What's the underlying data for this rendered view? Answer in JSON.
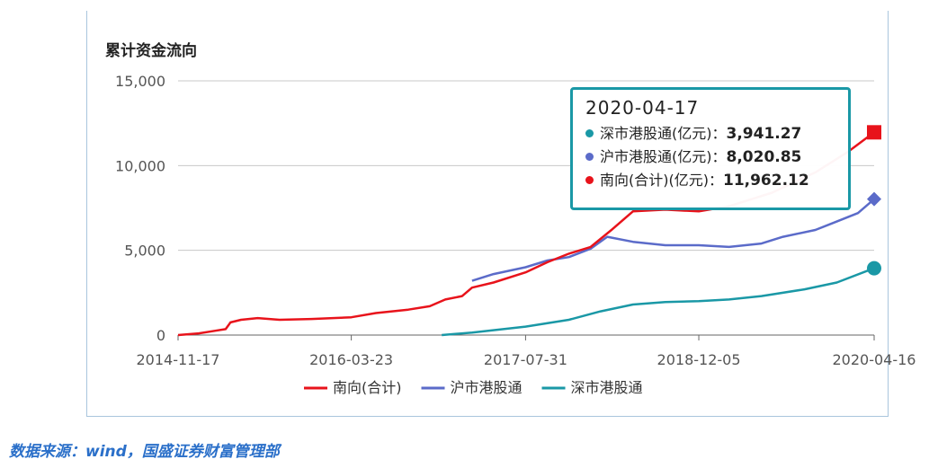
{
  "chart_data": {
    "type": "line",
    "title": "累计资金流向",
    "x_ticks": [
      "2014-11-17",
      "2016-03-23",
      "2017-07-31",
      "2018-12-05",
      "2020-04-16"
    ],
    "y_ticks": [
      "0",
      "5,000",
      "10,000",
      "15,000"
    ],
    "ylim": [
      0,
      15000
    ],
    "grid": "horizontal",
    "legend_position": "bottom",
    "series": [
      {
        "name": "南向(合计)",
        "color": "#e8131b",
        "marker": "square",
        "points": [
          [
            "2014-11-17",
            0
          ],
          [
            "2015-01-15",
            100
          ],
          [
            "2015-03-01",
            250
          ],
          [
            "2015-04-01",
            350
          ],
          [
            "2015-04-15",
            750
          ],
          [
            "2015-05-15",
            900
          ],
          [
            "2015-07-01",
            1000
          ],
          [
            "2015-09-01",
            900
          ],
          [
            "2015-12-01",
            950
          ],
          [
            "2016-03-23",
            1050
          ],
          [
            "2016-06-01",
            1300
          ],
          [
            "2016-09-01",
            1500
          ],
          [
            "2016-11-01",
            1700
          ],
          [
            "2016-12-15",
            2100
          ],
          [
            "2017-02-01",
            2300
          ],
          [
            "2017-03-01",
            2800
          ],
          [
            "2017-05-01",
            3100
          ],
          [
            "2017-07-31",
            3700
          ],
          [
            "2017-10-01",
            4300
          ],
          [
            "2017-12-01",
            4800
          ],
          [
            "2018-02-01",
            5200
          ],
          [
            "2018-04-01",
            6200
          ],
          [
            "2018-06-01",
            7300
          ],
          [
            "2018-09-01",
            7400
          ],
          [
            "2018-12-05",
            7300
          ],
          [
            "2019-03-01",
            7600
          ],
          [
            "2019-07-01",
            8400
          ],
          [
            "2019-11-01",
            9600
          ],
          [
            "2020-02-01",
            10800
          ],
          [
            "2020-04-16",
            11962
          ]
        ]
      },
      {
        "name": "沪市港股通",
        "color": "#5b6bc9",
        "marker": "diamond",
        "points": [
          [
            "2017-03-01",
            3200
          ],
          [
            "2017-05-01",
            3600
          ],
          [
            "2017-07-31",
            4000
          ],
          [
            "2017-10-01",
            4400
          ],
          [
            "2017-12-01",
            4600
          ],
          [
            "2018-02-01",
            5100
          ],
          [
            "2018-03-20",
            5800
          ],
          [
            "2018-06-01",
            5500
          ],
          [
            "2018-09-01",
            5300
          ],
          [
            "2018-12-05",
            5300
          ],
          [
            "2019-03-01",
            5200
          ],
          [
            "2019-06-01",
            5400
          ],
          [
            "2019-08-01",
            5800
          ],
          [
            "2019-11-01",
            6200
          ],
          [
            "2020-01-01",
            6700
          ],
          [
            "2020-03-01",
            7200
          ],
          [
            "2020-04-16",
            8021
          ]
        ]
      },
      {
        "name": "深市港股通",
        "color": "#1a98a6",
        "marker": "circle",
        "points": [
          [
            "2016-12-05",
            0
          ],
          [
            "2017-03-01",
            150
          ],
          [
            "2017-07-31",
            500
          ],
          [
            "2017-12-01",
            900
          ],
          [
            "2018-03-01",
            1400
          ],
          [
            "2018-06-01",
            1800
          ],
          [
            "2018-09-01",
            1950
          ],
          [
            "2018-12-05",
            2000
          ],
          [
            "2019-03-01",
            2100
          ],
          [
            "2019-06-01",
            2300
          ],
          [
            "2019-10-01",
            2700
          ],
          [
            "2020-01-01",
            3100
          ],
          [
            "2020-04-16",
            3941
          ]
        ]
      }
    ]
  },
  "tooltip": {
    "date": "2020-04-17",
    "rows": [
      {
        "label": "深市港股通(亿元)：",
        "value": "3,941.27",
        "color": "#1a98a6"
      },
      {
        "label": "沪市港股通(亿元)：",
        "value": "8,020.85",
        "color": "#5b6bc9"
      },
      {
        "label": "南向(合计)(亿元)：",
        "value": "11,962.12",
        "color": "#e8131b"
      }
    ]
  },
  "source": "数据来源：wind，国盛证券财富管理部"
}
